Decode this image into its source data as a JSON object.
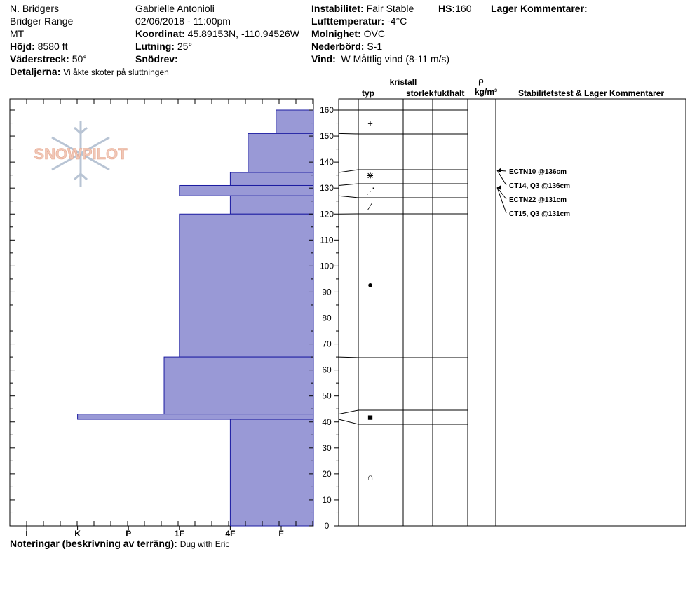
{
  "header": {
    "location_name": "N. Bridgers",
    "range": "Bridger Range",
    "state": "MT",
    "elevation_label": "Höjd:",
    "elevation_value": "8580 ft",
    "aspect_label": "Väderstreck:",
    "aspect_value": "50°",
    "details_label": "Detaljerna:",
    "details_value": "Vi åkte skoter på sluttningen",
    "observer": "Gabrielle Antonioli",
    "datetime": "02/06/2018 - 11:00pm",
    "coord_label": "Koordinat:",
    "coord_value": "45.89153N, -110.94526W",
    "slope_label": "Lutning:",
    "slope_value": "25°",
    "snowdrift_label": "Snödrev:",
    "snowdrift_value": "",
    "instability_label": "Instabilitet:",
    "instability_value": "Fair Stable",
    "hs_label": "HS:",
    "hs_value": "160",
    "layer_comments_label": "Lager Kommentarer:",
    "air_temp_label": "Lufttemperatur:",
    "air_temp_value": "-4°C",
    "cloud_label": "Molnighet:",
    "cloud_value": "OVC",
    "precip_label": "Nederbörd:",
    "precip_value": "S-1",
    "wind_label": "Vind:",
    "wind_value": "W Måttlig vind (8-11 m/s)"
  },
  "logo_text": "SNOWPILOT",
  "columns": {
    "typ": "typ",
    "kristall": "kristall",
    "storlek": "storlek",
    "fukthalt": "fukthalt",
    "rho": "ρ",
    "density_unit": "kg/m³",
    "stability": "Stabilitetstest & Lager Kommentarer"
  },
  "footer": {
    "notes_label": "Noteringar (beskrivning av terräng):",
    "notes_value": "Dug with Eric"
  },
  "colors": {
    "layer_fill": "#9999d6",
    "layer_edge": "#1a1aa0",
    "logo": "#f0c8b8",
    "flake": "#b8c4d4"
  },
  "chart_data": {
    "type": "snow_profile",
    "y_axis": {
      "min": 0,
      "max": 160,
      "ticks": [
        0,
        10,
        20,
        30,
        40,
        50,
        60,
        70,
        80,
        90,
        100,
        110,
        120,
        130,
        140,
        150,
        160
      ]
    },
    "hardness_scale": [
      "I",
      "K",
      "P",
      "1F",
      "4F",
      "F"
    ],
    "layers": [
      {
        "top": 160,
        "bottom": 151,
        "hardness": "F"
      },
      {
        "top": 151,
        "bottom": 136,
        "hardness": "F+"
      },
      {
        "top": 136,
        "bottom": 131,
        "hardness": "4F-"
      },
      {
        "top": 131,
        "bottom": 127,
        "hardness": "1F"
      },
      {
        "top": 127,
        "bottom": 120,
        "hardness": "4F-"
      },
      {
        "top": 120,
        "bottom": 65,
        "hardness": "1F"
      },
      {
        "top": 65,
        "bottom": 43,
        "hardness": "P+"
      },
      {
        "top": 43,
        "bottom": 41,
        "hardness": "K"
      },
      {
        "top": 41,
        "bottom": 0,
        "hardness": "4F-"
      }
    ],
    "hardness_values": [
      4.9,
      4.35,
      4.0,
      3.0,
      4.0,
      3.0,
      2.7,
      1.0,
      4.0
    ],
    "crystal_rows": [
      160,
      151,
      136,
      131,
      127,
      120,
      65,
      43,
      41
    ],
    "grain_symbols": [
      {
        "symbol": "+",
        "at": 155
      },
      {
        "symbol": "⋇",
        "at": 135
      },
      {
        "symbol": "⋰",
        "at": 129
      },
      {
        "symbol": "⁄",
        "at": 123
      },
      {
        "symbol": "●",
        "at": 93
      },
      {
        "symbol": "■",
        "at": 42
      },
      {
        "symbol": "⌂",
        "at": 19
      }
    ],
    "stability_tests": [
      {
        "label": "ECTN10 @136cm",
        "depth": 136
      },
      {
        "label": "CT14, Q3 @136cm",
        "depth": 136
      },
      {
        "label": "ECTN22 @131cm",
        "depth": 131
      },
      {
        "label": "CT15, Q3 @131cm",
        "depth": 131
      }
    ]
  }
}
